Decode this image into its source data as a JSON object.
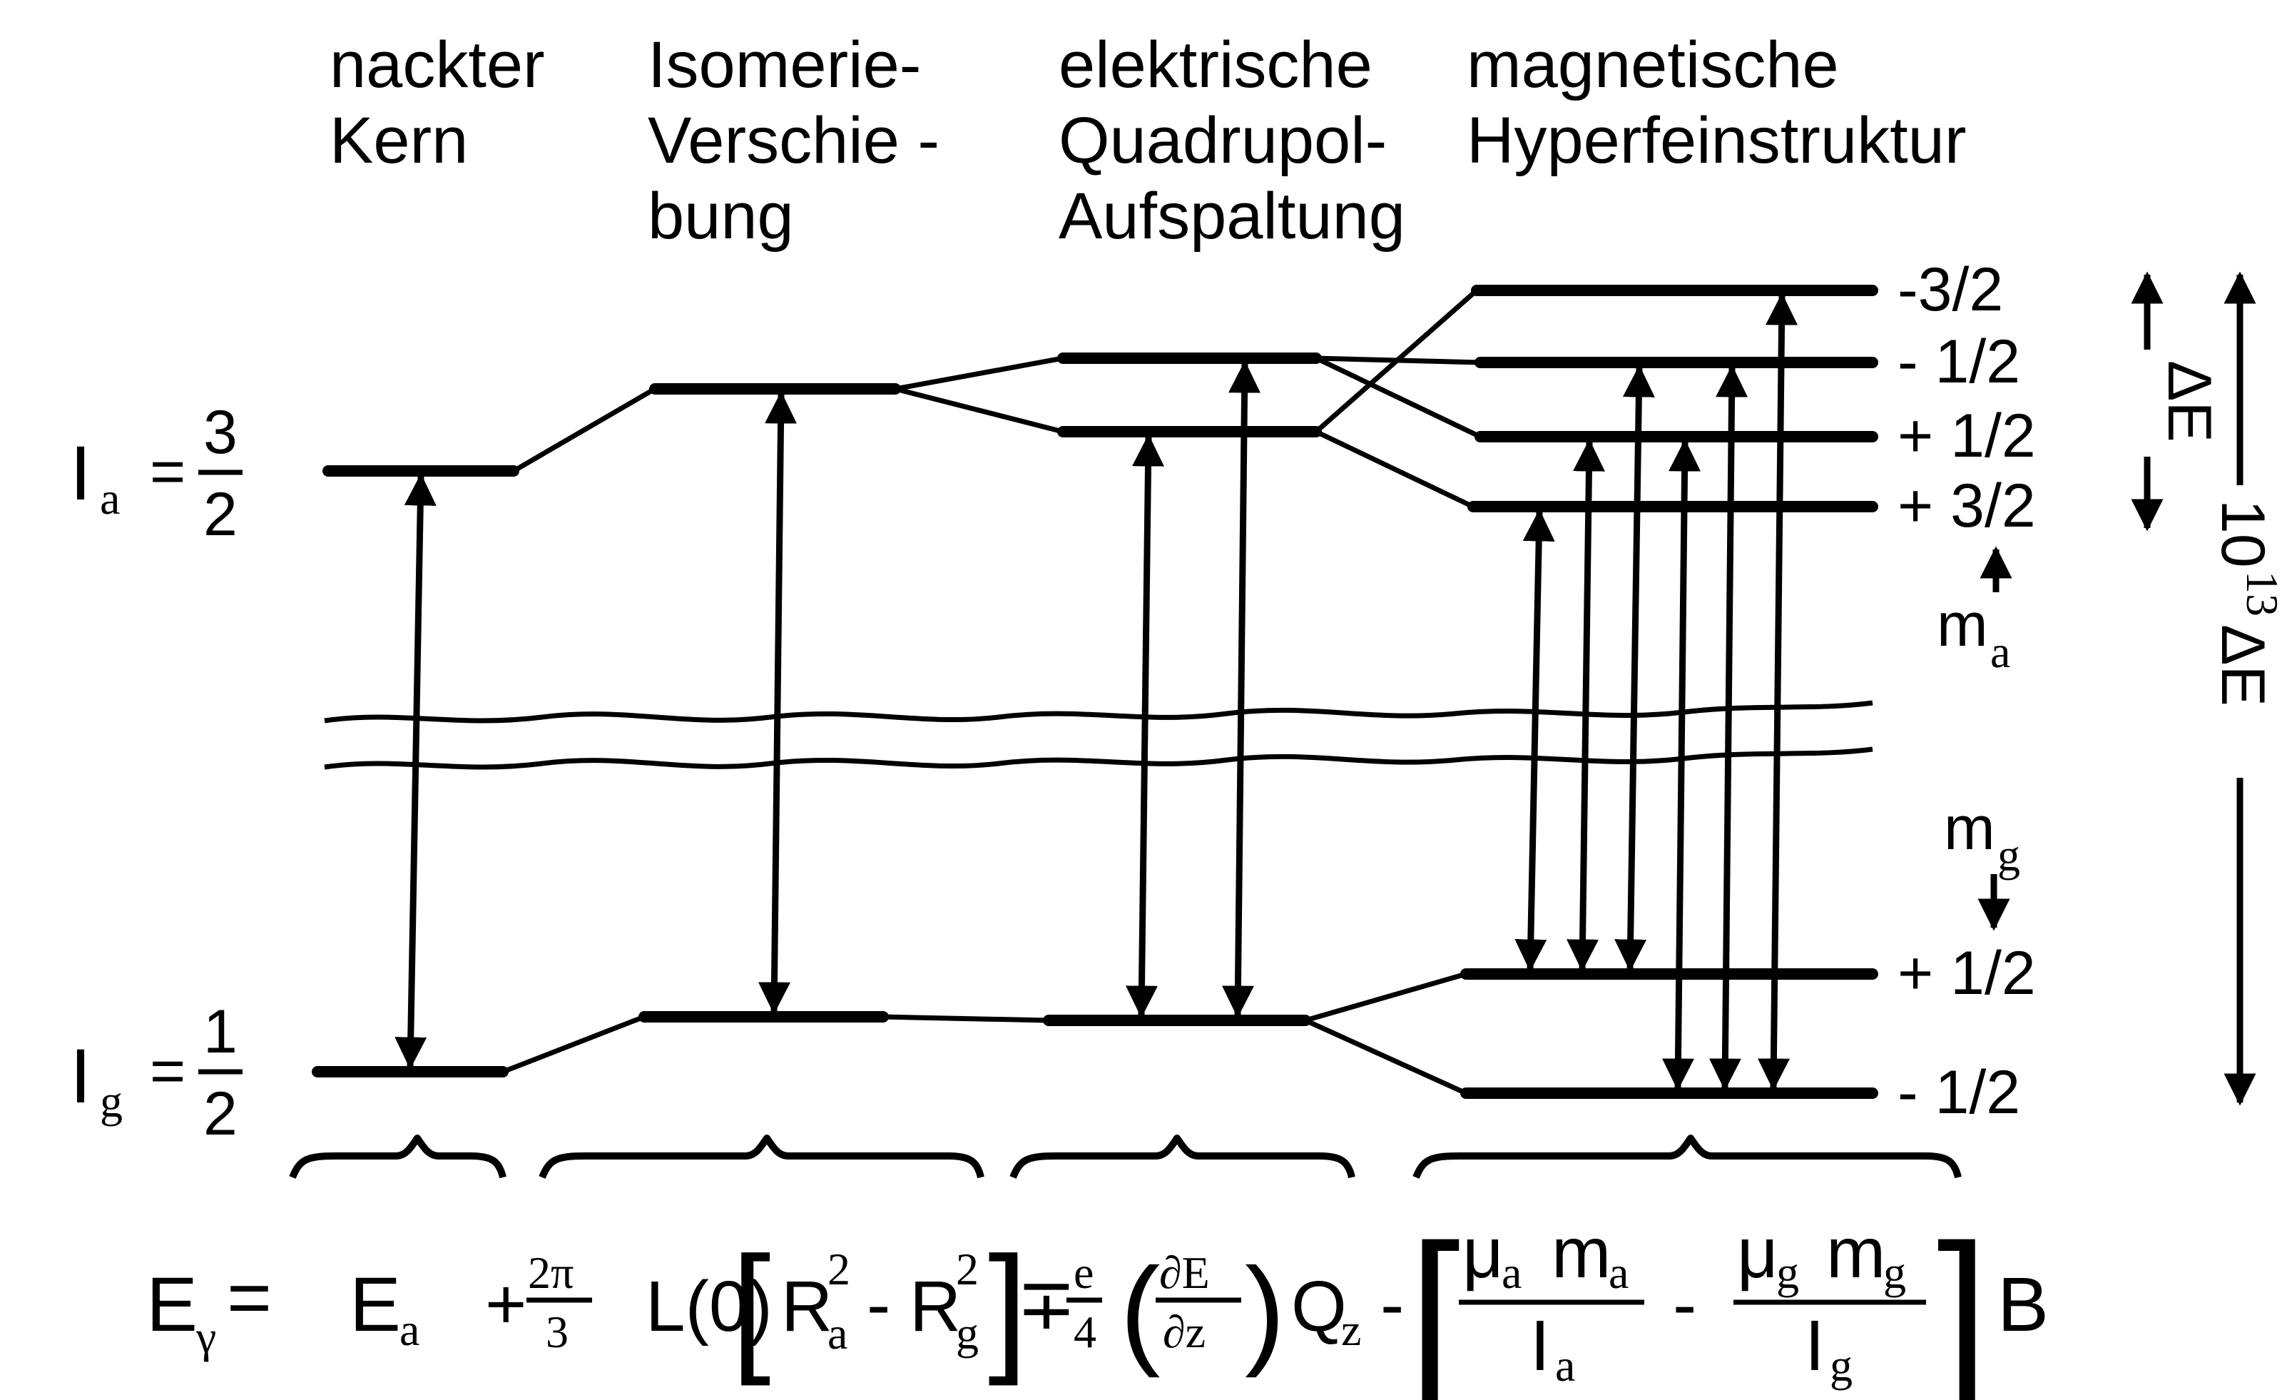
{
  "columns": {
    "bare": {
      "line1": "nackter",
      "line2": "Kern"
    },
    "isomer": {
      "line1": "Isomerie-",
      "line2": "Verschie -",
      "line3": "bung"
    },
    "quadrupole": {
      "line1": "elektrische",
      "line2": "Quadrupol-",
      "line3": "Aufspaltung"
    },
    "magnetic": {
      "line1": "magnetische",
      "line2": "Hyperfeinstruktur"
    }
  },
  "spins": {
    "excited": {
      "symbol": "I",
      "sub": "a",
      "eq": "=",
      "num": "3",
      "den": "2"
    },
    "ground": {
      "symbol": "I",
      "sub": "g",
      "eq": "=",
      "num": "1",
      "den": "2"
    }
  },
  "m_labels": {
    "excited": [
      "-3/2",
      "- 1/2",
      "+ 1/2",
      "+ 3/2"
    ],
    "ground": [
      "+ 1/2",
      "- 1/2"
    ],
    "ma": {
      "base": "m",
      "sub": "a"
    },
    "mg": {
      "base": "m",
      "sub": "g"
    }
  },
  "energy_scale": {
    "small": "ΔE",
    "large": "10",
    "large_exp": "13",
    "large_tail": "ΔE"
  },
  "formula": {
    "lhs": "E",
    "lhs_sub": "γ",
    "eq": "=",
    "t1": "E",
    "t1_sub": "a",
    "plus1": "+",
    "frac1_num": "2π",
    "frac1_den": "3",
    "L0": "L(0)",
    "R": "R",
    "Ra_sup": "2",
    "Ra_sub": "a",
    "minus1": "-",
    "Rg_sup": "2",
    "Rg_sub": "g",
    "pm": "∓",
    "frac2_num": "e",
    "frac2_den": "4",
    "grad_num": "∂E",
    "grad_den": "∂z",
    "Q": "Q",
    "Q_sub": "z",
    "minus2": "-",
    "mu_a": "μ",
    "mu_a_sub": "a",
    "m_a": "m",
    "m_a_sub": "a",
    "I_a": "I",
    "I_a_sub": "a",
    "minus3": "-",
    "mu_g": "μ",
    "mu_g_sub": "g",
    "m_g": "m",
    "m_g_sub": "g",
    "I_g": "I",
    "I_g_sub": "g",
    "B": "B"
  },
  "colors": {
    "ink": "#000000",
    "paper": "#ffffff"
  }
}
